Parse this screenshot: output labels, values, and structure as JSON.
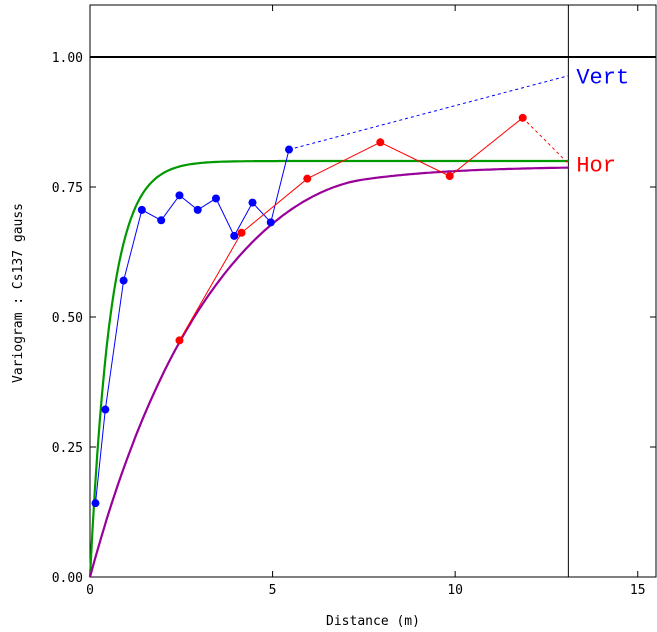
{
  "chart_data": {
    "type": "line",
    "xlabel": "Distance (m)",
    "ylabel": "Variogram : Cs137 gauss",
    "xlim": [
      0,
      15.5
    ],
    "ylim": [
      0,
      1.1
    ],
    "x_ticks": [
      0,
      5,
      10,
      15
    ],
    "y_ticks": [
      0.0,
      0.25,
      0.5,
      0.75,
      1.0
    ],
    "x_tick_labels": [
      "0",
      "5",
      "10",
      "15"
    ],
    "y_tick_labels": [
      "0.00",
      "0.25",
      "0.50",
      "0.75",
      "1.00"
    ],
    "sill_line": 1.0,
    "vertical_line_x": 13.1,
    "grid": false,
    "series": [
      {
        "name": "Vert",
        "kind": "experimental",
        "color": "#0000ff",
        "x": [
          0.15,
          0.42,
          0.92,
          1.42,
          1.95,
          2.45,
          2.95,
          3.45,
          3.95,
          4.45,
          4.95,
          5.45
        ],
        "y": [
          0.142,
          0.322,
          0.57,
          0.706,
          0.686,
          0.734,
          0.706,
          0.728,
          0.656,
          0.72,
          0.682,
          0.822
        ],
        "extension_to": [
          13.1,
          0.964
        ]
      },
      {
        "name": "Hor",
        "kind": "experimental",
        "color": "#ff0000",
        "x": [
          2.45,
          4.15,
          5.95,
          7.95,
          9.85,
          11.85
        ],
        "y": [
          0.455,
          0.662,
          0.766,
          0.836,
          0.771,
          0.883
        ],
        "extension_to": [
          13.1,
          0.795
        ]
      },
      {
        "kind": "model",
        "color": "#009900",
        "model": "exponential",
        "sill": 0.8,
        "range": 1.7,
        "x_max": 13.1
      },
      {
        "kind": "model",
        "color": "#990099",
        "model": "spherical_exponential",
        "sill": 0.79,
        "range": 7.5,
        "x_max": 13.1
      }
    ]
  }
}
